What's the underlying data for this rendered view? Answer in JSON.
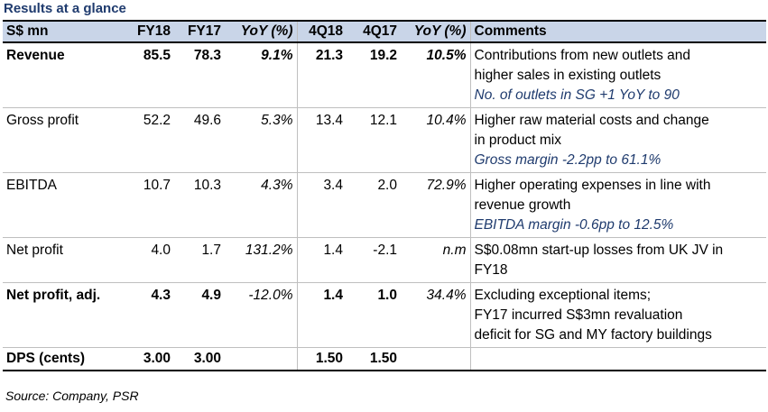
{
  "title": "Results at a glance",
  "headers": [
    "S$ mn",
    "FY18",
    "FY17",
    "YoY (%)",
    "4Q18",
    "4Q17",
    "YoY (%)",
    "Comments"
  ],
  "rows": [
    {
      "label": "Revenue",
      "fy18": "85.5",
      "fy17": "78.3",
      "yoy": "9.1%",
      "q418": "21.3",
      "q417": "19.2",
      "qyoy": "10.5%",
      "comment_lines": [
        "Contributions from new outlets and",
        "higher sales in existing outlets"
      ],
      "comment_note": "No. of outlets in SG +1 YoY to 90"
    },
    {
      "label": "Gross profit",
      "fy18": "52.2",
      "fy17": "49.6",
      "yoy": "5.3%",
      "q418": "13.4",
      "q417": "12.1",
      "qyoy": "10.4%",
      "comment_lines": [
        "Higher raw material costs and change",
        "in product mix"
      ],
      "comment_note": "Gross margin -2.2pp to 61.1%"
    },
    {
      "label": "EBITDA",
      "fy18": "10.7",
      "fy17": "10.3",
      "yoy": "4.3%",
      "q418": "3.4",
      "q417": "2.0",
      "qyoy": "72.9%",
      "comment_lines": [
        "Higher operating expenses in line with",
        "revenue growth"
      ],
      "comment_note": "EBITDA margin -0.6pp to 12.5%"
    },
    {
      "label": "Net profit",
      "fy18": "4.0",
      "fy17": "1.7",
      "yoy": "131.2%",
      "q418": "1.4",
      "q417": "-2.1",
      "qyoy": "n.m",
      "comment_lines": [
        "S$0.08mn start-up losses from UK JV in",
        "FY18"
      ],
      "comment_note": ""
    },
    {
      "label": "Net profit, adj.",
      "fy18": "4.3",
      "fy17": "4.9",
      "yoy": "-12.0%",
      "q418": "1.4",
      "q417": "1.0",
      "qyoy": "34.4%",
      "comment_lines": [
        "Excluding exceptional items;",
        "FY17 incurred S$3mn revaluation",
        "deficit for SG and MY factory buildings"
      ],
      "comment_note": ""
    },
    {
      "label": "DPS (cents)",
      "fy18": "3.00",
      "fy17": "3.00",
      "yoy": "",
      "q418": "1.50",
      "q417": "1.50",
      "qyoy": "",
      "comment_lines": [],
      "comment_note": ""
    }
  ],
  "source": "Source: Company, PSR"
}
